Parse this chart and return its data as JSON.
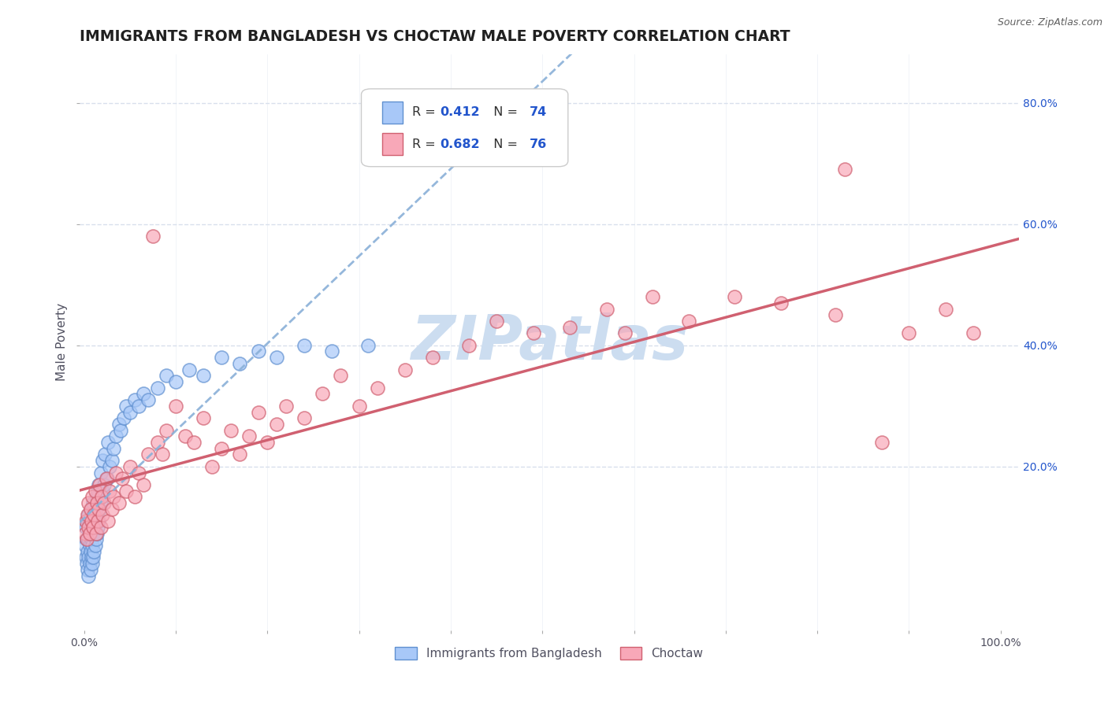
{
  "title": "IMMIGRANTS FROM BANGLADESH VS CHOCTAW MALE POVERTY CORRELATION CHART",
  "source": "Source: ZipAtlas.com",
  "ylabel": "Male Poverty",
  "xlim": [
    -0.005,
    1.02
  ],
  "ylim": [
    -0.07,
    0.88
  ],
  "xticks": [
    0.0,
    0.1,
    0.2,
    0.3,
    0.4,
    0.5,
    0.6,
    0.7,
    0.8,
    0.9,
    1.0
  ],
  "xtick_labels": [
    "0.0%",
    "",
    "",
    "",
    "",
    "",
    "",
    "",
    "",
    "",
    "100.0%"
  ],
  "right_ytick_positions": [
    0.2,
    0.4,
    0.6,
    0.8
  ],
  "right_ytick_labels": [
    "20.0%",
    "40.0%",
    "60.0%",
    "80.0%"
  ],
  "series1_name": "Immigrants from Bangladesh",
  "series1_R": 0.412,
  "series1_N": 74,
  "series1_color": "#a8c8f8",
  "series1_edge": "#6090d0",
  "series2_name": "Choctaw",
  "series2_R": 0.682,
  "series2_N": 76,
  "series2_color": "#f8a8b8",
  "series2_edge": "#d06070",
  "trend1_color": "#6090d0",
  "trend2_color": "#d06070",
  "watermark": "ZIPatlas",
  "watermark_color": "#ccddf0",
  "background_color": "#ffffff",
  "grid_color": "#d8e0ec",
  "title_color": "#202020",
  "legend_val_color": "#2255cc",
  "title_fontsize": 13.5,
  "axis_label_fontsize": 11,
  "tick_fontsize": 10,
  "series1_x": [
    0.001,
    0.002,
    0.002,
    0.003,
    0.003,
    0.004,
    0.004,
    0.004,
    0.005,
    0.005,
    0.005,
    0.005,
    0.006,
    0.006,
    0.006,
    0.007,
    0.007,
    0.007,
    0.008,
    0.008,
    0.008,
    0.009,
    0.009,
    0.009,
    0.01,
    0.01,
    0.01,
    0.011,
    0.011,
    0.012,
    0.012,
    0.013,
    0.013,
    0.014,
    0.014,
    0.015,
    0.015,
    0.016,
    0.016,
    0.017,
    0.018,
    0.018,
    0.019,
    0.02,
    0.02,
    0.022,
    0.023,
    0.025,
    0.026,
    0.028,
    0.03,
    0.032,
    0.035,
    0.038,
    0.04,
    0.043,
    0.046,
    0.05,
    0.055,
    0.06,
    0.065,
    0.07,
    0.08,
    0.09,
    0.1,
    0.115,
    0.13,
    0.15,
    0.17,
    0.19,
    0.21,
    0.24,
    0.27,
    0.31
  ],
  "series1_y": [
    0.07,
    0.05,
    0.1,
    0.04,
    0.08,
    0.03,
    0.06,
    0.11,
    0.02,
    0.05,
    0.08,
    0.12,
    0.04,
    0.07,
    0.11,
    0.03,
    0.06,
    0.1,
    0.05,
    0.08,
    0.13,
    0.04,
    0.07,
    0.11,
    0.05,
    0.09,
    0.14,
    0.06,
    0.1,
    0.07,
    0.12,
    0.08,
    0.13,
    0.09,
    0.15,
    0.1,
    0.16,
    0.11,
    0.17,
    0.13,
    0.14,
    0.19,
    0.15,
    0.16,
    0.21,
    0.17,
    0.22,
    0.18,
    0.24,
    0.2,
    0.21,
    0.23,
    0.25,
    0.27,
    0.26,
    0.28,
    0.3,
    0.29,
    0.31,
    0.3,
    0.32,
    0.31,
    0.33,
    0.35,
    0.34,
    0.36,
    0.35,
    0.38,
    0.37,
    0.39,
    0.38,
    0.4,
    0.39,
    0.4
  ],
  "series2_x": [
    0.001,
    0.002,
    0.003,
    0.004,
    0.005,
    0.005,
    0.006,
    0.007,
    0.008,
    0.009,
    0.01,
    0.011,
    0.012,
    0.013,
    0.014,
    0.015,
    0.016,
    0.017,
    0.018,
    0.019,
    0.02,
    0.022,
    0.024,
    0.026,
    0.028,
    0.03,
    0.032,
    0.035,
    0.038,
    0.042,
    0.046,
    0.05,
    0.055,
    0.06,
    0.065,
    0.07,
    0.075,
    0.08,
    0.085,
    0.09,
    0.1,
    0.11,
    0.12,
    0.13,
    0.14,
    0.15,
    0.16,
    0.17,
    0.18,
    0.19,
    0.2,
    0.21,
    0.22,
    0.24,
    0.26,
    0.28,
    0.3,
    0.32,
    0.35,
    0.38,
    0.42,
    0.45,
    0.49,
    0.53,
    0.57,
    0.62,
    0.66,
    0.71,
    0.76,
    0.82,
    0.87,
    0.9,
    0.94,
    0.97,
    0.83,
    0.59
  ],
  "series2_y": [
    0.09,
    0.11,
    0.08,
    0.12,
    0.1,
    0.14,
    0.09,
    0.13,
    0.11,
    0.15,
    0.1,
    0.12,
    0.16,
    0.09,
    0.14,
    0.11,
    0.13,
    0.17,
    0.1,
    0.15,
    0.12,
    0.14,
    0.18,
    0.11,
    0.16,
    0.13,
    0.15,
    0.19,
    0.14,
    0.18,
    0.16,
    0.2,
    0.15,
    0.19,
    0.17,
    0.22,
    0.58,
    0.24,
    0.22,
    0.26,
    0.3,
    0.25,
    0.24,
    0.28,
    0.2,
    0.23,
    0.26,
    0.22,
    0.25,
    0.29,
    0.24,
    0.27,
    0.3,
    0.28,
    0.32,
    0.35,
    0.3,
    0.33,
    0.36,
    0.38,
    0.4,
    0.44,
    0.42,
    0.43,
    0.46,
    0.48,
    0.44,
    0.48,
    0.47,
    0.45,
    0.24,
    0.42,
    0.46,
    0.42,
    0.69,
    0.42
  ]
}
